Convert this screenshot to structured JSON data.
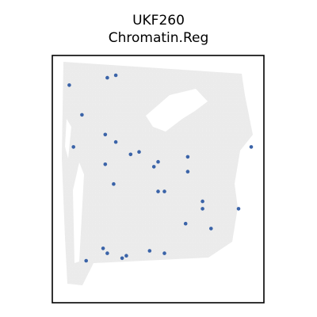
{
  "chart_data": {
    "type": "scatter",
    "title": "UKF260",
    "subtitle": "Chromatin.Reg",
    "xlabel": "",
    "ylabel": "",
    "grid": false,
    "legend": "none",
    "tissue_color": "#ebebeb",
    "spot_color": "#3a63a8",
    "frame_color": "#000000",
    "xlim": [
      0,
      100
    ],
    "ylim": [
      0,
      100
    ],
    "series": [
      {
        "values": [
          {
            "x": 8,
            "y": 88
          },
          {
            "x": 26,
            "y": 91
          },
          {
            "x": 30,
            "y": 92
          },
          {
            "x": 14,
            "y": 76
          },
          {
            "x": 25,
            "y": 68
          },
          {
            "x": 30,
            "y": 65
          },
          {
            "x": 10,
            "y": 63
          },
          {
            "x": 37,
            "y": 60
          },
          {
            "x": 41,
            "y": 61
          },
          {
            "x": 50,
            "y": 57
          },
          {
            "x": 48,
            "y": 55
          },
          {
            "x": 25,
            "y": 56
          },
          {
            "x": 64,
            "y": 59
          },
          {
            "x": 64,
            "y": 53
          },
          {
            "x": 29,
            "y": 48
          },
          {
            "x": 50,
            "y": 45
          },
          {
            "x": 53,
            "y": 45
          },
          {
            "x": 71,
            "y": 41
          },
          {
            "x": 71,
            "y": 38
          },
          {
            "x": 88,
            "y": 38
          },
          {
            "x": 63,
            "y": 32
          },
          {
            "x": 75,
            "y": 30
          },
          {
            "x": 24,
            "y": 22
          },
          {
            "x": 26,
            "y": 20
          },
          {
            "x": 16,
            "y": 17
          },
          {
            "x": 33,
            "y": 18
          },
          {
            "x": 35,
            "y": 19
          },
          {
            "x": 46,
            "y": 21
          },
          {
            "x": 53,
            "y": 20
          },
          {
            "x": 94,
            "y": 63
          }
        ]
      }
    ]
  }
}
